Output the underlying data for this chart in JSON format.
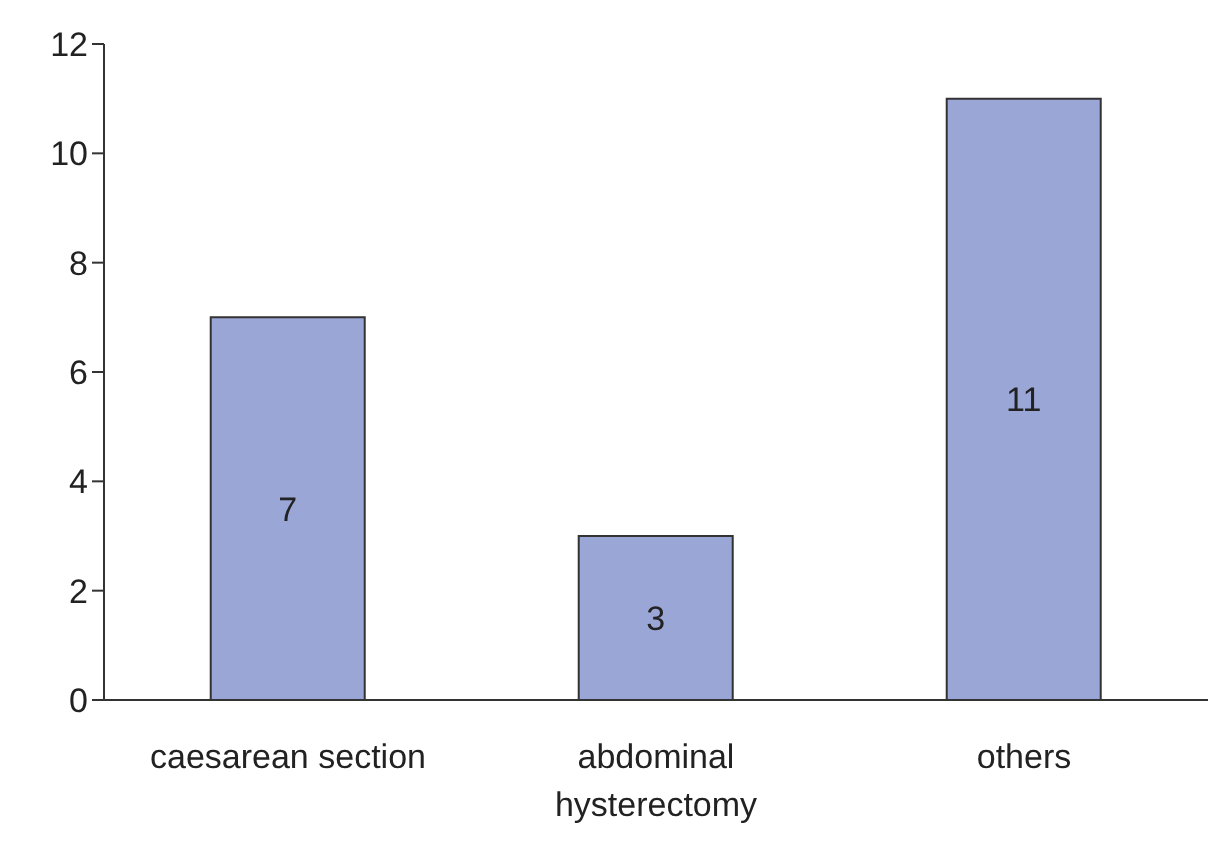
{
  "chart_data": {
    "type": "bar",
    "categories": [
      "caesarean section",
      "abdominal hysterectomy",
      "others"
    ],
    "values": [
      7,
      3,
      11
    ],
    "color": "#9aa6d6",
    "ylim": [
      0,
      12
    ],
    "yticks": [
      0,
      2,
      4,
      6,
      8,
      10,
      12
    ],
    "data_labels": true,
    "grid": false,
    "legend": false
  }
}
